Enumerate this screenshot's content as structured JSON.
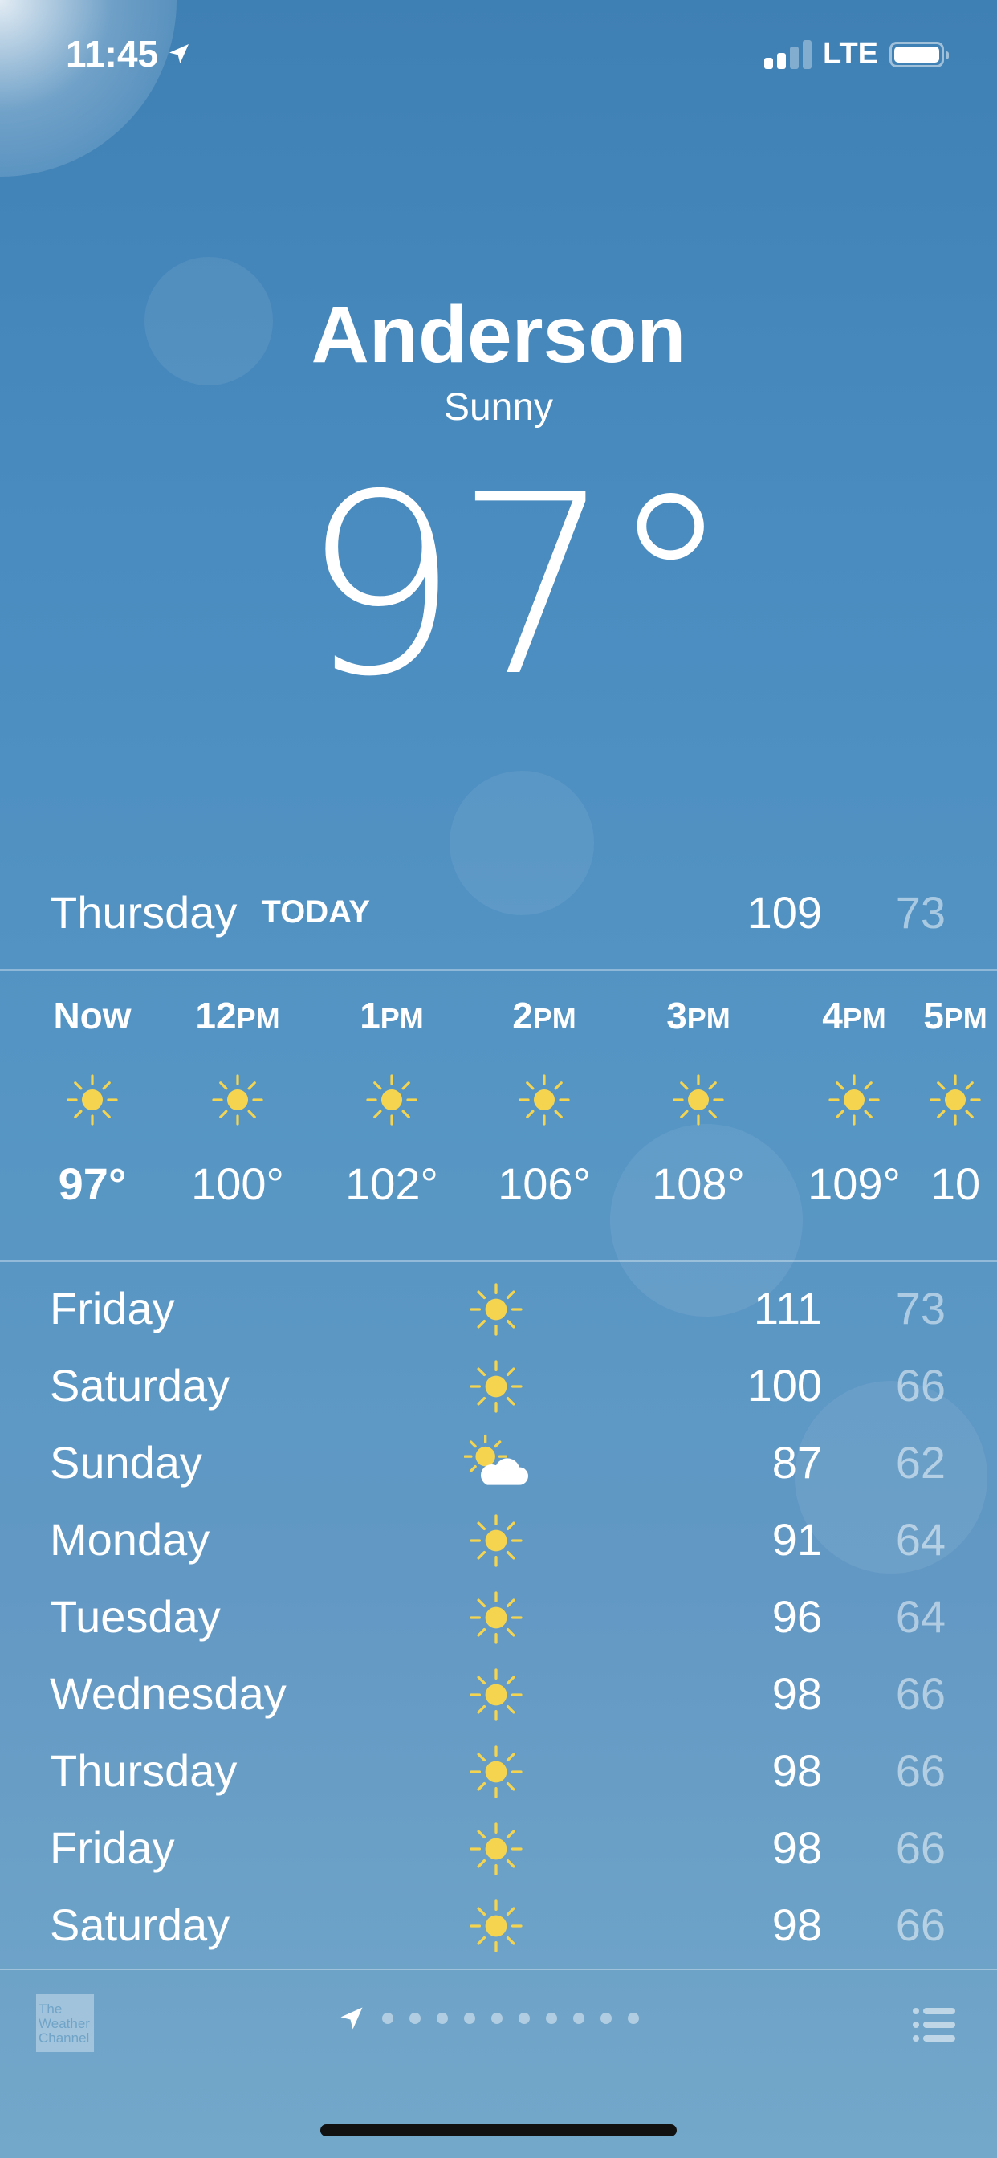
{
  "status_bar": {
    "time": "11:45",
    "network": "LTE",
    "signal_bars": 2,
    "signal_max": 4,
    "battery_level": 1.0
  },
  "location": {
    "city": "Anderson",
    "condition": "Sunny",
    "temperature": "97°"
  },
  "today": {
    "day": "Thursday",
    "tag": "TODAY",
    "high": "109",
    "low": "73"
  },
  "hourly": [
    {
      "time": "Now",
      "suffix": "",
      "icon": "sun-icon",
      "temp": "97°"
    },
    {
      "time": "12",
      "suffix": "PM",
      "icon": "sun-icon",
      "temp": "100°"
    },
    {
      "time": "1",
      "suffix": "PM",
      "icon": "sun-icon",
      "temp": "102°"
    },
    {
      "time": "2",
      "suffix": "PM",
      "icon": "sun-icon",
      "temp": "106°"
    },
    {
      "time": "3",
      "suffix": "PM",
      "icon": "sun-icon",
      "temp": "108°"
    },
    {
      "time": "4",
      "suffix": "PM",
      "icon": "sun-icon",
      "temp": "109°"
    },
    {
      "time": "5",
      "suffix": "PM",
      "icon": "sun-icon",
      "temp": "10"
    }
  ],
  "daily": [
    {
      "day": "Friday",
      "icon": "sun-icon",
      "high": "111",
      "low": "73"
    },
    {
      "day": "Saturday",
      "icon": "sun-icon",
      "high": "100",
      "low": "66"
    },
    {
      "day": "Sunday",
      "icon": "partly-cloudy-icon",
      "high": "87",
      "low": "62"
    },
    {
      "day": "Monday",
      "icon": "sun-icon",
      "high": "91",
      "low": "64"
    },
    {
      "day": "Tuesday",
      "icon": "sun-icon",
      "high": "96",
      "low": "64"
    },
    {
      "day": "Wednesday",
      "icon": "sun-icon",
      "high": "98",
      "low": "66"
    },
    {
      "day": "Thursday",
      "icon": "sun-icon",
      "high": "98",
      "low": "66"
    },
    {
      "day": "Friday",
      "icon": "sun-icon",
      "high": "98",
      "low": "66"
    },
    {
      "day": "Saturday",
      "icon": "sun-icon",
      "high": "98",
      "low": "66"
    }
  ],
  "footer": {
    "logo_text": "The Weather Channel",
    "page_count": 10,
    "current_page": "location"
  },
  "colors": {
    "sun": "#f5d550",
    "background_top": "#3f80b4",
    "background_bottom": "#74a8ca"
  }
}
